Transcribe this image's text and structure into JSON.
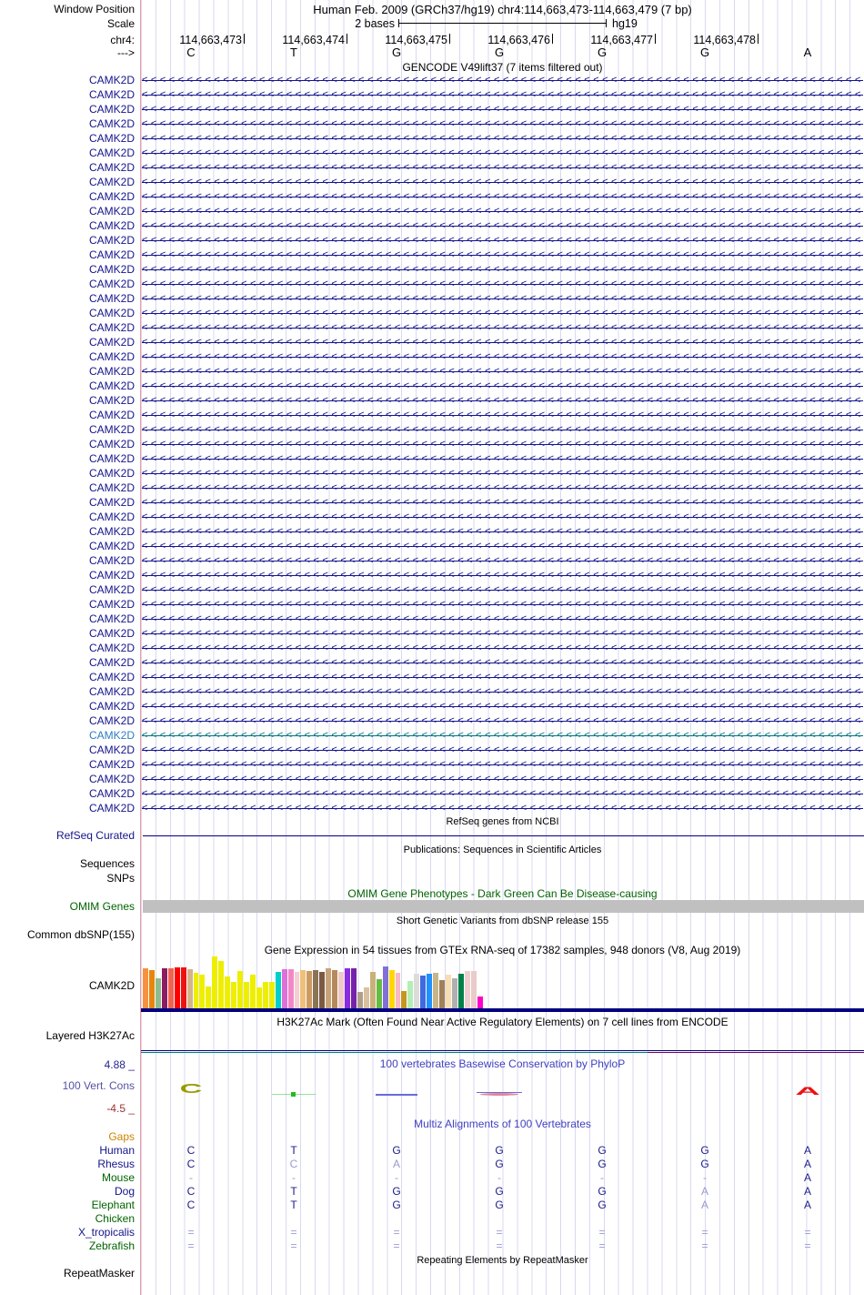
{
  "header": {
    "window_position_label": "Window Position",
    "position_title": "Human Feb. 2009 (GRCh37/hg19)   chr4:114,663,473-114,663,479 (7 bp)",
    "scale_label": "Scale",
    "scale_value": "2 bases",
    "assembly": "hg19",
    "chrom_label": "chr4:",
    "direction_label": "--->",
    "coordinates": [
      "114,663,473",
      "114,663,474",
      "114,663,475",
      "114,663,476",
      "114,663,477",
      "114,663,478"
    ],
    "bases": [
      "C",
      "T",
      "G",
      "G",
      "G",
      "G",
      "A"
    ]
  },
  "gencode": {
    "title": "GENCODE V49lift37 (7 items filtered out)",
    "gene_label": "CAMK2D",
    "row_count": 51,
    "highlighted_row_index": 45,
    "strand_glyph": "<",
    "gene_color": "#14148c",
    "highlight_label_color": "#2e7dbe",
    "highlight_line_color": "#00767e"
  },
  "refseq": {
    "title": "RefSeq genes from NCBI",
    "label": "RefSeq Curated",
    "label_color": "#14148c",
    "line_color": "#000080"
  },
  "publications": {
    "title": "Publications: Sequences in Scientific Articles",
    "labels": [
      "Sequences",
      "SNPs"
    ]
  },
  "omim": {
    "title": "OMIM Gene Phenotypes - Dark Green Can Be Disease-causing",
    "label": "OMIM Genes",
    "color": "#006400",
    "bar_color": "#c0c0c0"
  },
  "dbsnp": {
    "title": "Short Genetic Variants from dbSNP release 155",
    "label": "Common dbSNP(155)"
  },
  "gtex": {
    "title": "Gene Expression in 54 tissues from GTEx RNA-seq of 17382 samples, 948 donors (V8, Aug 2019)",
    "label": "CAMK2D",
    "baseline_color": "#000080"
  },
  "chart_data": {
    "type": "bar",
    "title": "Gene Expression in 54 tissues from GTEx RNA-seq of 17382 samples, 948 donors (V8, Aug 2019)",
    "gene": "CAMK2D",
    "note": "54 GTEx tissue bars; tissue names not visible in screenshot; values are relative bar heights (px of 57 max), no y-axis shown",
    "values": [
      44,
      42,
      33,
      44,
      44,
      45,
      45,
      43,
      39,
      37,
      24,
      57,
      52,
      35,
      29,
      41,
      29,
      37,
      23,
      29,
      29,
      40,
      43,
      43,
      40,
      42,
      41,
      42,
      40,
      44,
      42,
      40,
      44,
      44,
      18,
      23,
      40,
      32,
      46,
      42,
      39,
      19,
      30,
      38,
      36,
      38,
      39,
      31,
      37,
      33,
      38,
      41,
      41,
      13
    ],
    "colors": [
      "#f59140",
      "#e8860c",
      "#8fbc8f",
      "#8b1c62",
      "#ee6352",
      "#ff0000",
      "#ee1111",
      "#d2b48c",
      "#eeee00",
      "#eeee00",
      "#eeee00",
      "#eeee00",
      "#eeee00",
      "#eeee00",
      "#eeee00",
      "#eeee00",
      "#eeee00",
      "#eeee00",
      "#eeee00",
      "#eeee00",
      "#eeee00",
      "#00ced1",
      "#e06fd8",
      "#f088c8",
      "#f6cdd3",
      "#eec07a",
      "#cd9b62",
      "#8b7355",
      "#7a5a42",
      "#c8a37a",
      "#b5895c",
      "#f0c8c8",
      "#8a2be2",
      "#7722aa",
      "#b0a08a",
      "#d8c0a0",
      "#c9b27a",
      "#66bb44",
      "#8070d8",
      "#ffd700",
      "#f9b8c8",
      "#c8961e",
      "#b4eeb4",
      "#dcdcdc",
      "#4169e1",
      "#1e90ff",
      "#c8b489",
      "#a08058",
      "#f5deb3",
      "#b0b0b0",
      "#00804a",
      "#eecfcf",
      "#eacaca",
      "#ff00cc"
    ]
  },
  "h3k27ac": {
    "title": "H3K27Ac Mark (Often Found Near Active Regulatory Elements) on 7 cell lines from ENCODE",
    "label": "Layered H3K27Ac",
    "top_line_color": "#000080",
    "segments": [
      {
        "color": "#008080",
        "from": 0.0,
        "to": 0.7
      },
      {
        "color": "#7a0060",
        "from": 0.7,
        "to": 1.0
      }
    ]
  },
  "phylop": {
    "title": "100 vertebrates Basewise Conservation by PhyloP",
    "title_color": "#4040c0",
    "label": "100 Vert. Cons",
    "label_color": "#5252a8",
    "max_label": "4.88 _",
    "max_color": "#26268c",
    "min_label": "-4.5 _",
    "min_color": "#993333",
    "marks": [
      {
        "base_index": 0,
        "glyph": "C",
        "color": "#9a9a00"
      },
      {
        "base_index": 1,
        "glyph": "dot-line",
        "color": "#22bb22"
      },
      {
        "base_index": 2,
        "glyph": "dash",
        "color": "#6a6ae0"
      },
      {
        "base_index": 3,
        "glyph": "dash-double",
        "color": "#e08898"
      },
      {
        "base_index": 6,
        "glyph": "A",
        "color": "#ee1111"
      }
    ]
  },
  "multiz": {
    "title": "Multiz Alignments of 100 Vertebrates",
    "title_color": "#4040c0",
    "dark_letter_color": "#1c1c8a",
    "dim_letter_color": "#9a9ad2",
    "rows": [
      {
        "label": "Gaps",
        "label_color": "#cd8500",
        "cells": [
          [
            "",
            0
          ],
          [
            "",
            0
          ],
          [
            "",
            0
          ],
          [
            "",
            0
          ],
          [
            "",
            0
          ],
          [
            "",
            0
          ],
          [
            "",
            0
          ]
        ]
      },
      {
        "label": "Human",
        "label_color": "#14148c",
        "cells": [
          [
            "C",
            0
          ],
          [
            "T",
            0
          ],
          [
            "G",
            0
          ],
          [
            "G",
            0
          ],
          [
            "G",
            0
          ],
          [
            "G",
            0
          ],
          [
            "A",
            0
          ]
        ]
      },
      {
        "label": "Rhesus",
        "label_color": "#14148c",
        "cells": [
          [
            "C",
            0
          ],
          [
            "C",
            1
          ],
          [
            "A",
            1
          ],
          [
            "G",
            0
          ],
          [
            "G",
            0
          ],
          [
            "G",
            0
          ],
          [
            "A",
            0
          ]
        ]
      },
      {
        "label": "Mouse",
        "label_color": "#006400",
        "cells": [
          [
            "-",
            1
          ],
          [
            "-",
            1
          ],
          [
            "-",
            1
          ],
          [
            "-",
            1
          ],
          [
            "-",
            1
          ],
          [
            "-",
            1
          ],
          [
            "A",
            0
          ]
        ]
      },
      {
        "label": "Dog",
        "label_color": "#14148c",
        "cells": [
          [
            "C",
            0
          ],
          [
            "T",
            0
          ],
          [
            "G",
            0
          ],
          [
            "G",
            0
          ],
          [
            "G",
            0
          ],
          [
            "A",
            1
          ],
          [
            "A",
            0
          ]
        ]
      },
      {
        "label": "Elephant",
        "label_color": "#006400",
        "cells": [
          [
            "C",
            0
          ],
          [
            "T",
            0
          ],
          [
            "G",
            0
          ],
          [
            "G",
            0
          ],
          [
            "G",
            0
          ],
          [
            "A",
            1
          ],
          [
            "A",
            0
          ]
        ]
      },
      {
        "label": "Chicken",
        "label_color": "#006400",
        "cells": [
          [
            "",
            0
          ],
          [
            "",
            0
          ],
          [
            "",
            0
          ],
          [
            "",
            0
          ],
          [
            "",
            0
          ],
          [
            "",
            0
          ],
          [
            "",
            0
          ]
        ]
      },
      {
        "label": "X_tropicalis",
        "label_color": "#14148c",
        "cells": [
          [
            "=",
            1
          ],
          [
            "=",
            1
          ],
          [
            "=",
            1
          ],
          [
            "=",
            1
          ],
          [
            "=",
            1
          ],
          [
            "=",
            1
          ],
          [
            "=",
            1
          ]
        ]
      },
      {
        "label": "Zebrafish",
        "label_color": "#006400",
        "cells": [
          [
            "=",
            1
          ],
          [
            "=",
            1
          ],
          [
            "=",
            1
          ],
          [
            "=",
            1
          ],
          [
            "=",
            1
          ],
          [
            "=",
            1
          ],
          [
            "=",
            1
          ]
        ]
      }
    ]
  },
  "repeatmasker": {
    "title": "Repeating Elements by RepeatMasker",
    "label": "RepeatMasker"
  }
}
